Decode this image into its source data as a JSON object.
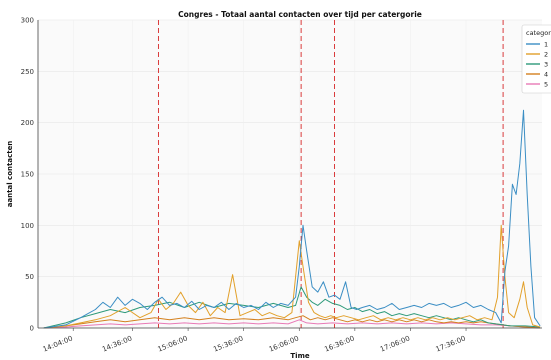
{
  "chart_data": {
    "type": "line",
    "title": "Congres - Totaal aantal contacten over tijd per catergorie",
    "xlabel": "Time",
    "ylabel": "aantal contacten",
    "ylim": [
      0,
      300
    ],
    "yticks": [
      0,
      50,
      100,
      150,
      200,
      250,
      300
    ],
    "xrange_minutes": [
      825,
      1097
    ],
    "xticks": [
      {
        "label": "14:04:00",
        "minute": 844
      },
      {
        "label": "14:36:00",
        "minute": 876
      },
      {
        "label": "15:06:00",
        "minute": 906
      },
      {
        "label": "15:36:00",
        "minute": 936
      },
      {
        "label": "16:06:00",
        "minute": 966
      },
      {
        "label": "16:36:00",
        "minute": 996
      },
      {
        "label": "17:06:00",
        "minute": 1026
      },
      {
        "label": "17:36:00",
        "minute": 1056
      }
    ],
    "vlines_minutes": [
      890,
      967,
      985,
      1076
    ],
    "grid": true,
    "legend": {
      "title": "categor",
      "placement": "top-right"
    },
    "series": [
      {
        "name": "1",
        "color": "#3b8ec4",
        "points": [
          [
            828,
            0
          ],
          [
            840,
            3
          ],
          [
            848,
            10
          ],
          [
            852,
            14
          ],
          [
            856,
            18
          ],
          [
            860,
            25
          ],
          [
            864,
            20
          ],
          [
            868,
            30
          ],
          [
            872,
            22
          ],
          [
            876,
            28
          ],
          [
            880,
            24
          ],
          [
            884,
            18
          ],
          [
            888,
            25
          ],
          [
            892,
            30
          ],
          [
            896,
            22
          ],
          [
            900,
            24
          ],
          [
            904,
            20
          ],
          [
            908,
            26
          ],
          [
            912,
            18
          ],
          [
            916,
            22
          ],
          [
            920,
            20
          ],
          [
            924,
            25
          ],
          [
            928,
            18
          ],
          [
            932,
            24
          ],
          [
            936,
            20
          ],
          [
            940,
            22
          ],
          [
            944,
            18
          ],
          [
            948,
            25
          ],
          [
            952,
            20
          ],
          [
            956,
            24
          ],
          [
            960,
            22
          ],
          [
            964,
            30
          ],
          [
            966,
            60
          ],
          [
            968,
            100
          ],
          [
            970,
            75
          ],
          [
            973,
            40
          ],
          [
            976,
            35
          ],
          [
            979,
            45
          ],
          [
            982,
            30
          ],
          [
            985,
            32
          ],
          [
            988,
            28
          ],
          [
            991,
            45
          ],
          [
            994,
            20
          ],
          [
            997,
            18
          ],
          [
            1000,
            20
          ],
          [
            1004,
            22
          ],
          [
            1008,
            18
          ],
          [
            1012,
            20
          ],
          [
            1016,
            24
          ],
          [
            1020,
            18
          ],
          [
            1024,
            20
          ],
          [
            1028,
            22
          ],
          [
            1032,
            20
          ],
          [
            1036,
            24
          ],
          [
            1040,
            22
          ],
          [
            1044,
            24
          ],
          [
            1048,
            20
          ],
          [
            1052,
            22
          ],
          [
            1056,
            25
          ],
          [
            1060,
            20
          ],
          [
            1064,
            22
          ],
          [
            1068,
            18
          ],
          [
            1072,
            15
          ],
          [
            1075,
            5
          ],
          [
            1077,
            55
          ],
          [
            1079,
            80
          ],
          [
            1081,
            140
          ],
          [
            1083,
            130
          ],
          [
            1085,
            160
          ],
          [
            1087,
            212
          ],
          [
            1089,
            130
          ],
          [
            1091,
            60
          ],
          [
            1093,
            10
          ],
          [
            1096,
            2
          ]
        ]
      },
      {
        "name": "2",
        "color": "#e2a02a",
        "points": [
          [
            828,
            0
          ],
          [
            840,
            2
          ],
          [
            848,
            5
          ],
          [
            856,
            8
          ],
          [
            864,
            12
          ],
          [
            872,
            20
          ],
          [
            880,
            10
          ],
          [
            886,
            15
          ],
          [
            890,
            28
          ],
          [
            894,
            18
          ],
          [
            898,
            24
          ],
          [
            902,
            35
          ],
          [
            906,
            22
          ],
          [
            910,
            15
          ],
          [
            914,
            25
          ],
          [
            918,
            12
          ],
          [
            922,
            20
          ],
          [
            926,
            15
          ],
          [
            930,
            52
          ],
          [
            934,
            12
          ],
          [
            938,
            15
          ],
          [
            942,
            18
          ],
          [
            946,
            12
          ],
          [
            950,
            15
          ],
          [
            954,
            12
          ],
          [
            958,
            10
          ],
          [
            962,
            15
          ],
          [
            966,
            85
          ],
          [
            968,
            60
          ],
          [
            971,
            25
          ],
          [
            974,
            15
          ],
          [
            977,
            12
          ],
          [
            980,
            10
          ],
          [
            983,
            12
          ],
          [
            986,
            10
          ],
          [
            990,
            12
          ],
          [
            994,
            10
          ],
          [
            998,
            8
          ],
          [
            1002,
            10
          ],
          [
            1006,
            12
          ],
          [
            1010,
            8
          ],
          [
            1014,
            10
          ],
          [
            1018,
            8
          ],
          [
            1022,
            10
          ],
          [
            1026,
            8
          ],
          [
            1030,
            10
          ],
          [
            1034,
            8
          ],
          [
            1038,
            10
          ],
          [
            1042,
            8
          ],
          [
            1046,
            10
          ],
          [
            1050,
            8
          ],
          [
            1054,
            10
          ],
          [
            1058,
            12
          ],
          [
            1062,
            8
          ],
          [
            1066,
            10
          ],
          [
            1070,
            8
          ],
          [
            1073,
            30
          ],
          [
            1075,
            100
          ],
          [
            1077,
            50
          ],
          [
            1079,
            15
          ],
          [
            1082,
            10
          ],
          [
            1085,
            28
          ],
          [
            1087,
            45
          ],
          [
            1089,
            20
          ],
          [
            1092,
            3
          ],
          [
            1096,
            1
          ]
        ]
      },
      {
        "name": "3",
        "color": "#2e9a7a",
        "points": [
          [
            828,
            0
          ],
          [
            840,
            5
          ],
          [
            848,
            10
          ],
          [
            856,
            14
          ],
          [
            864,
            18
          ],
          [
            872,
            15
          ],
          [
            880,
            20
          ],
          [
            888,
            22
          ],
          [
            896,
            25
          ],
          [
            904,
            20
          ],
          [
            912,
            25
          ],
          [
            920,
            20
          ],
          [
            928,
            24
          ],
          [
            936,
            22
          ],
          [
            944,
            20
          ],
          [
            952,
            24
          ],
          [
            960,
            20
          ],
          [
            964,
            22
          ],
          [
            967,
            40
          ],
          [
            970,
            30
          ],
          [
            973,
            25
          ],
          [
            976,
            22
          ],
          [
            980,
            28
          ],
          [
            984,
            24
          ],
          [
            988,
            22
          ],
          [
            992,
            18
          ],
          [
            996,
            20
          ],
          [
            1000,
            16
          ],
          [
            1004,
            18
          ],
          [
            1008,
            14
          ],
          [
            1012,
            16
          ],
          [
            1016,
            12
          ],
          [
            1020,
            14
          ],
          [
            1024,
            12
          ],
          [
            1028,
            14
          ],
          [
            1032,
            12
          ],
          [
            1036,
            10
          ],
          [
            1040,
            12
          ],
          [
            1044,
            10
          ],
          [
            1048,
            8
          ],
          [
            1052,
            10
          ],
          [
            1056,
            8
          ],
          [
            1060,
            6
          ],
          [
            1064,
            8
          ],
          [
            1068,
            5
          ],
          [
            1072,
            4
          ],
          [
            1076,
            3
          ],
          [
            1080,
            2
          ],
          [
            1088,
            2
          ],
          [
            1096,
            1
          ]
        ]
      },
      {
        "name": "4",
        "color": "#d4801e",
        "points": [
          [
            828,
            0
          ],
          [
            840,
            2
          ],
          [
            848,
            4
          ],
          [
            856,
            6
          ],
          [
            864,
            8
          ],
          [
            872,
            6
          ],
          [
            880,
            8
          ],
          [
            888,
            10
          ],
          [
            896,
            8
          ],
          [
            904,
            10
          ],
          [
            912,
            8
          ],
          [
            920,
            10
          ],
          [
            928,
            8
          ],
          [
            936,
            9
          ],
          [
            944,
            8
          ],
          [
            952,
            10
          ],
          [
            960,
            8
          ],
          [
            964,
            10
          ],
          [
            968,
            12
          ],
          [
            972,
            8
          ],
          [
            976,
            10
          ],
          [
            980,
            8
          ],
          [
            984,
            10
          ],
          [
            988,
            8
          ],
          [
            992,
            6
          ],
          [
            996,
            8
          ],
          [
            1000,
            6
          ],
          [
            1004,
            8
          ],
          [
            1008,
            6
          ],
          [
            1012,
            8
          ],
          [
            1016,
            6
          ],
          [
            1020,
            8
          ],
          [
            1024,
            6
          ],
          [
            1028,
            8
          ],
          [
            1032,
            6
          ],
          [
            1036,
            8
          ],
          [
            1040,
            6
          ],
          [
            1044,
            5
          ],
          [
            1048,
            6
          ],
          [
            1052,
            5
          ],
          [
            1056,
            6
          ],
          [
            1060,
            5
          ],
          [
            1064,
            6
          ],
          [
            1068,
            5
          ],
          [
            1072,
            4
          ],
          [
            1076,
            3
          ],
          [
            1080,
            2
          ],
          [
            1088,
            1
          ],
          [
            1096,
            0
          ]
        ]
      },
      {
        "name": "5",
        "color": "#e879b6",
        "points": [
          [
            828,
            0
          ],
          [
            840,
            1
          ],
          [
            848,
            2
          ],
          [
            856,
            3
          ],
          [
            864,
            4
          ],
          [
            872,
            3
          ],
          [
            880,
            4
          ],
          [
            888,
            5
          ],
          [
            896,
            4
          ],
          [
            904,
            5
          ],
          [
            912,
            4
          ],
          [
            920,
            5
          ],
          [
            928,
            4
          ],
          [
            936,
            5
          ],
          [
            944,
            4
          ],
          [
            952,
            5
          ],
          [
            960,
            4
          ],
          [
            966,
            8
          ],
          [
            970,
            5
          ],
          [
            976,
            4
          ],
          [
            984,
            5
          ],
          [
            992,
            4
          ],
          [
            1000,
            5
          ],
          [
            1008,
            4
          ],
          [
            1016,
            5
          ],
          [
            1024,
            4
          ],
          [
            1032,
            5
          ],
          [
            1040,
            4
          ],
          [
            1048,
            5
          ],
          [
            1056,
            4
          ],
          [
            1064,
            3
          ],
          [
            1072,
            3
          ],
          [
            1080,
            2
          ],
          [
            1088,
            1
          ],
          [
            1096,
            0
          ]
        ]
      }
    ]
  }
}
